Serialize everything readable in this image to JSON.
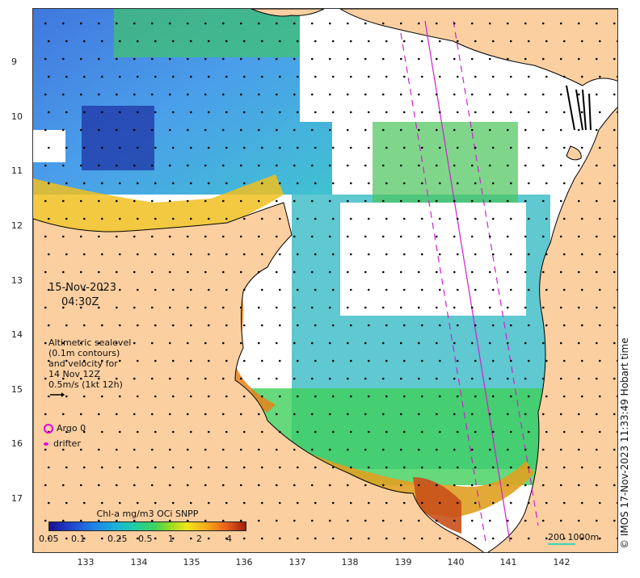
{
  "map": {
    "date": "15-Nov-2023",
    "time": "04:30Z",
    "legend_lines": [
      "Altimetric sealevel",
      "(0.1m contours)",
      "and velocity for",
      "14 Nov 12Z",
      "0.5m/s (1kt 12h)"
    ],
    "argo_label": "Argo 0",
    "drifter_label": "drifter",
    "colorbar": {
      "title": "Chl-a mg/m3 OCi SNPP",
      "ticks": [
        "0.05",
        "0.1",
        "0.25",
        "0.5",
        "1",
        "2",
        "4"
      ]
    },
    "scale_label": "200  1000m",
    "copyright": "© IMOS 17-Nov-2023 11:33:49 Hobart time",
    "lat_ticks": [
      "9",
      "10",
      "11",
      "12",
      "13",
      "14",
      "15",
      "16",
      "17"
    ],
    "lon_ticks": [
      "133",
      "134",
      "135",
      "136",
      "137",
      "138",
      "139",
      "140",
      "141",
      "142"
    ],
    "colors": {
      "land": "#fbcfa0",
      "coastline": "#000000",
      "argo": "#e000e0",
      "track": "#d020d0",
      "scale_bar": "#3fd3b0"
    }
  }
}
